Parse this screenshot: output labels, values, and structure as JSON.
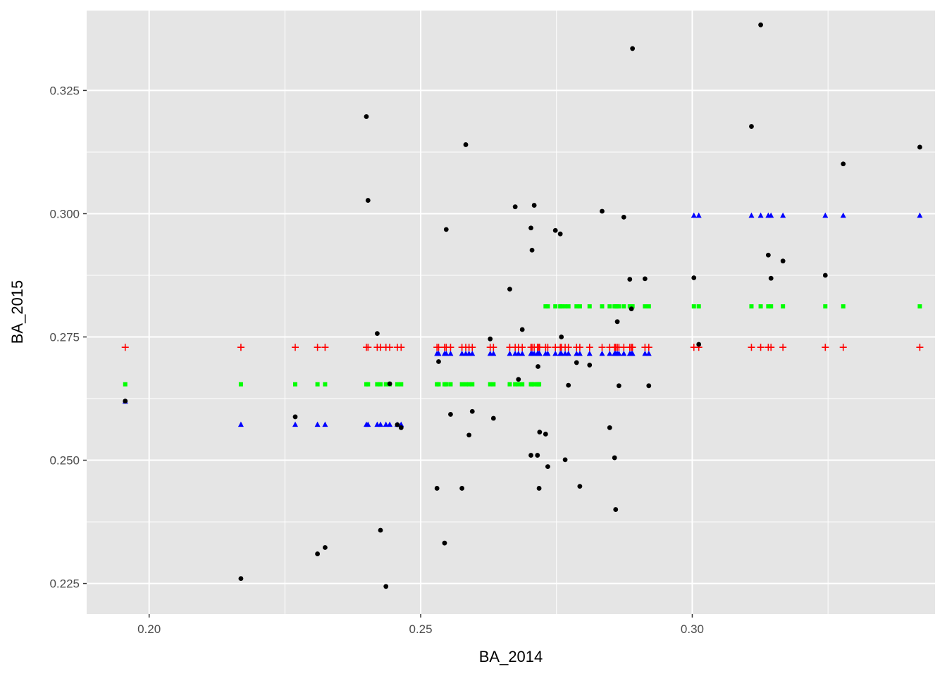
{
  "chart_data": {
    "type": "scatter",
    "title": "",
    "xlabel": "BA_2014",
    "ylabel": "BA_2015",
    "xlim": [
      0.1885,
      0.3447
    ],
    "ylim": [
      0.2188,
      0.3412
    ],
    "x_ticks": [
      0.2,
      0.25,
      0.3
    ],
    "x_tick_labels": [
      "0.20",
      "0.25",
      "0.30"
    ],
    "x_minor_ticks": [
      0.225,
      0.275,
      0.325
    ],
    "y_ticks": [
      0.225,
      0.25,
      0.275,
      0.3,
      0.325
    ],
    "y_tick_labels": [
      "0.225",
      "0.250",
      "0.275",
      "0.300",
      "0.325"
    ],
    "y_minor_ticks": [
      0.2375,
      0.2625,
      0.2875,
      0.3125
    ],
    "grid": true,
    "legend": "none",
    "background": "#e5e5e5",
    "gridline_color": "#ffffff",
    "series": [
      {
        "marker": "circle",
        "color": "#000000",
        "points": [
          [
            0.1956,
            0.262
          ],
          [
            0.2169,
            0.226
          ],
          [
            0.2269,
            0.2588
          ],
          [
            0.231,
            0.231
          ],
          [
            0.2324,
            0.2323
          ],
          [
            0.24,
            0.3197
          ],
          [
            0.2403,
            0.3027
          ],
          [
            0.242,
            0.2757
          ],
          [
            0.2426,
            0.2358
          ],
          [
            0.2436,
            0.2244
          ],
          [
            0.2443,
            0.2655
          ],
          [
            0.2457,
            0.2572
          ],
          [
            0.2464,
            0.2566
          ],
          [
            0.253,
            0.2443
          ],
          [
            0.2533,
            0.27
          ],
          [
            0.2544,
            0.2332
          ],
          [
            0.2547,
            0.2968
          ],
          [
            0.2555,
            0.2593
          ],
          [
            0.2576,
            0.2443
          ],
          [
            0.2583,
            0.314
          ],
          [
            0.2589,
            0.2551
          ],
          [
            0.2595,
            0.2599
          ],
          [
            0.2628,
            0.2746
          ],
          [
            0.2634,
            0.2585
          ],
          [
            0.2664,
            0.2847
          ],
          [
            0.2674,
            0.3014
          ],
          [
            0.268,
            0.2664
          ],
          [
            0.2687,
            0.2765
          ],
          [
            0.2703,
            0.2971
          ],
          [
            0.2703,
            0.251
          ],
          [
            0.2705,
            0.2926
          ],
          [
            0.2709,
            0.3017
          ],
          [
            0.2715,
            0.251
          ],
          [
            0.2716,
            0.269
          ],
          [
            0.2718,
            0.2443
          ],
          [
            0.2719,
            0.2557
          ],
          [
            0.273,
            0.2553
          ],
          [
            0.2734,
            0.2487
          ],
          [
            0.2748,
            0.2966
          ],
          [
            0.2757,
            0.2959
          ],
          [
            0.2759,
            0.275
          ],
          [
            0.2766,
            0.2501
          ],
          [
            0.2772,
            0.2652
          ],
          [
            0.2787,
            0.2698
          ],
          [
            0.2793,
            0.2447
          ],
          [
            0.2811,
            0.2693
          ],
          [
            0.2834,
            0.3005
          ],
          [
            0.2848,
            0.2566
          ],
          [
            0.2857,
            0.2505
          ],
          [
            0.2859,
            0.24
          ],
          [
            0.2862,
            0.2781
          ],
          [
            0.2865,
            0.2651
          ],
          [
            0.2874,
            0.2993
          ],
          [
            0.2885,
            0.2867
          ],
          [
            0.2888,
            0.2807
          ],
          [
            0.289,
            0.3335
          ],
          [
            0.2913,
            0.2868
          ],
          [
            0.292,
            0.2651
          ],
          [
            0.3003,
            0.287
          ],
          [
            0.3012,
            0.2735
          ],
          [
            0.3109,
            0.3177
          ],
          [
            0.3126,
            0.3383
          ],
          [
            0.314,
            0.2916
          ],
          [
            0.3145,
            0.2869
          ],
          [
            0.3167,
            0.2904
          ],
          [
            0.3245,
            0.2875
          ],
          [
            0.3278,
            0.3101
          ],
          [
            0.3419,
            0.3135
          ]
        ]
      },
      {
        "marker": "cross",
        "color": "#ff0000",
        "x": [
          0.1956,
          0.2169,
          0.2269,
          0.231,
          0.2324,
          0.24,
          0.2403,
          0.242,
          0.2426,
          0.2436,
          0.2443,
          0.2457,
          0.2464,
          0.253,
          0.2533,
          0.2544,
          0.2547,
          0.2555,
          0.2576,
          0.2583,
          0.2589,
          0.2595,
          0.2628,
          0.2634,
          0.2664,
          0.2674,
          0.268,
          0.2687,
          0.2703,
          0.2705,
          0.2709,
          0.2715,
          0.2716,
          0.2718,
          0.2719,
          0.273,
          0.2734,
          0.2748,
          0.2757,
          0.2759,
          0.2766,
          0.2772,
          0.2787,
          0.2793,
          0.2811,
          0.2834,
          0.2848,
          0.2857,
          0.2859,
          0.2862,
          0.2865,
          0.2874,
          0.2885,
          0.2888,
          0.289,
          0.2913,
          0.292,
          0.3003,
          0.3012,
          0.3109,
          0.3126,
          0.314,
          0.3145,
          0.3167,
          0.3245,
          0.3278,
          0.3419
        ],
        "y": 0.2729
      },
      {
        "marker": "square",
        "color": "#00ff00",
        "groups": [
          {
            "y": 0.2654,
            "x": [
              0.1956,
              0.2169,
              0.2269,
              0.231,
              0.2324,
              0.24,
              0.2403,
              0.242,
              0.2426,
              0.2436,
              0.2443,
              0.2457,
              0.2464,
              0.253,
              0.2533,
              0.2544,
              0.2547,
              0.2555,
              0.2576,
              0.2583,
              0.2589,
              0.2595,
              0.2628,
              0.2634,
              0.2664,
              0.2674,
              0.268,
              0.2687,
              0.2703,
              0.2705,
              0.2709,
              0.2715,
              0.2716,
              0.2718
            ]
          },
          {
            "y": 0.2812,
            "x": [
              0.273,
              0.2734,
              0.2748,
              0.2757,
              0.2759,
              0.2766,
              0.2772,
              0.2787,
              0.2793,
              0.2811,
              0.2834,
              0.2848,
              0.2857,
              0.2859,
              0.2862,
              0.2865,
              0.2874,
              0.2885,
              0.2888,
              0.289,
              0.2913,
              0.292,
              0.3003,
              0.3012,
              0.3109,
              0.3126,
              0.314,
              0.3145,
              0.3167,
              0.3245,
              0.3278,
              0.3419
            ]
          }
        ]
      },
      {
        "marker": "triangle",
        "color": "#0000ff",
        "groups": [
          {
            "y": 0.2619,
            "x": [
              0.1956
            ]
          },
          {
            "y": 0.2572,
            "x": [
              0.2169,
              0.2269,
              0.231,
              0.2324,
              0.24,
              0.2403,
              0.242,
              0.2426,
              0.2436,
              0.2443,
              0.2457,
              0.2464
            ]
          },
          {
            "y": 0.2716,
            "x": [
              0.253,
              0.2533,
              0.2544,
              0.2547,
              0.2555,
              0.2576,
              0.2583,
              0.2589,
              0.2595,
              0.2628,
              0.2634,
              0.2664,
              0.2674,
              0.268,
              0.2687,
              0.2703,
              0.2705,
              0.2709,
              0.2715,
              0.2716,
              0.2718,
              0.2719,
              0.273,
              0.2734,
              0.2748,
              0.2757,
              0.2759,
              0.2766,
              0.2772,
              0.2787,
              0.2793,
              0.2811,
              0.2834,
              0.2848,
              0.2857,
              0.2859,
              0.2862,
              0.2865,
              0.2874,
              0.2885,
              0.2888,
              0.289,
              0.2913,
              0.292
            ]
          },
          {
            "y": 0.2996,
            "x": [
              0.3003,
              0.3012,
              0.3109,
              0.3126,
              0.314,
              0.3145,
              0.3167,
              0.3245,
              0.3278,
              0.3419
            ]
          }
        ]
      }
    ]
  }
}
